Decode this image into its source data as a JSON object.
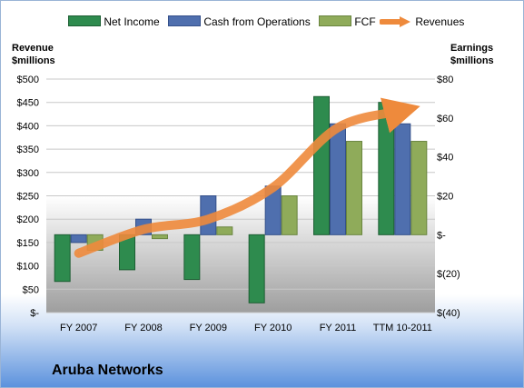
{
  "legend": {
    "net_income": "Net Income",
    "cash_from_operations": "Cash from Operations",
    "fcf": "FCF",
    "revenues": "Revenues"
  },
  "left_axis_title": [
    "Revenue",
    "$millions"
  ],
  "right_axis_title": [
    "Earnings",
    "$millions"
  ],
  "company": "Aruba Networks",
  "colors": {
    "net_income": "#2e8b4e",
    "cash_from_operations": "#4f6fae",
    "fcf": "#8fab5a",
    "revenues": "#ee8a3c",
    "plot_background_top": "#ffffff",
    "plot_background_bottom": "#9e9e9e"
  },
  "chart_data": {
    "type": "bar",
    "categories": [
      "FY 2007",
      "FY 2008",
      "FY 2009",
      "FY 2010",
      "FY 2011",
      "TTM 10-2011"
    ],
    "series": [
      {
        "name": "Net Income",
        "axis": "right",
        "values": [
          -24,
          -18,
          -23,
          -35,
          71,
          68
        ]
      },
      {
        "name": "Cash from Operations",
        "axis": "right",
        "values": [
          -4,
          8,
          20,
          25,
          57,
          57
        ]
      },
      {
        "name": "FCF",
        "axis": "right",
        "values": [
          -8,
          -2,
          4,
          20,
          48,
          48
        ]
      },
      {
        "name": "Revenues",
        "axis": "left",
        "type": "line",
        "values": [
          127,
          178,
          200,
          268,
          396,
          432
        ]
      }
    ],
    "left_axis": {
      "label": "Revenue $millions",
      "min": 0,
      "max": 500,
      "step": 50,
      "ticks": [
        "$-",
        "$50",
        "$100",
        "$150",
        "$200",
        "$250",
        "$300",
        "$350",
        "$400",
        "$450",
        "$500"
      ]
    },
    "right_axis": {
      "label": "Earnings $millions",
      "min": -40,
      "max": 80,
      "step": 20,
      "ticks": [
        "$(40)",
        "$(20)",
        "$-",
        "$20",
        "$40",
        "$60",
        "$80"
      ]
    },
    "grid": true,
    "legend_position": "top"
  }
}
